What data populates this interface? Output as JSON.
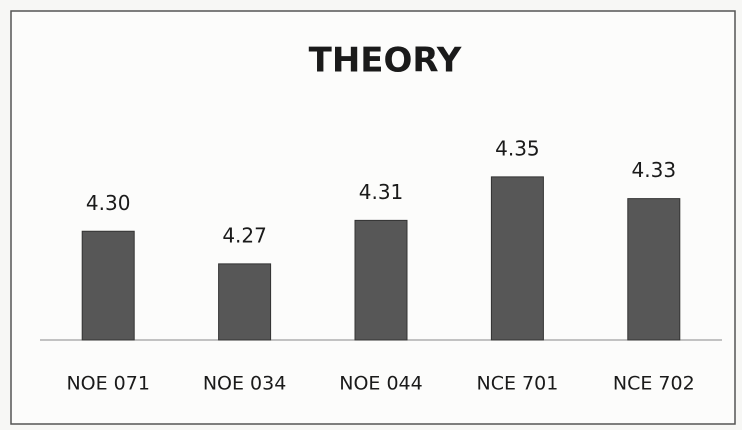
{
  "chart_data": {
    "type": "bar",
    "title": "THEORY",
    "categories": [
      "NOE 071",
      "NOE 034",
      "NOE 044",
      "NCE 701",
      "NCE 702"
    ],
    "values": [
      4.3,
      4.27,
      4.31,
      4.35,
      4.33
    ],
    "value_labels": [
      "4.30",
      "4.27",
      "4.31",
      "4.35",
      "4.33"
    ],
    "color": "#575757",
    "ylim": [
      4.2,
      4.36
    ]
  }
}
